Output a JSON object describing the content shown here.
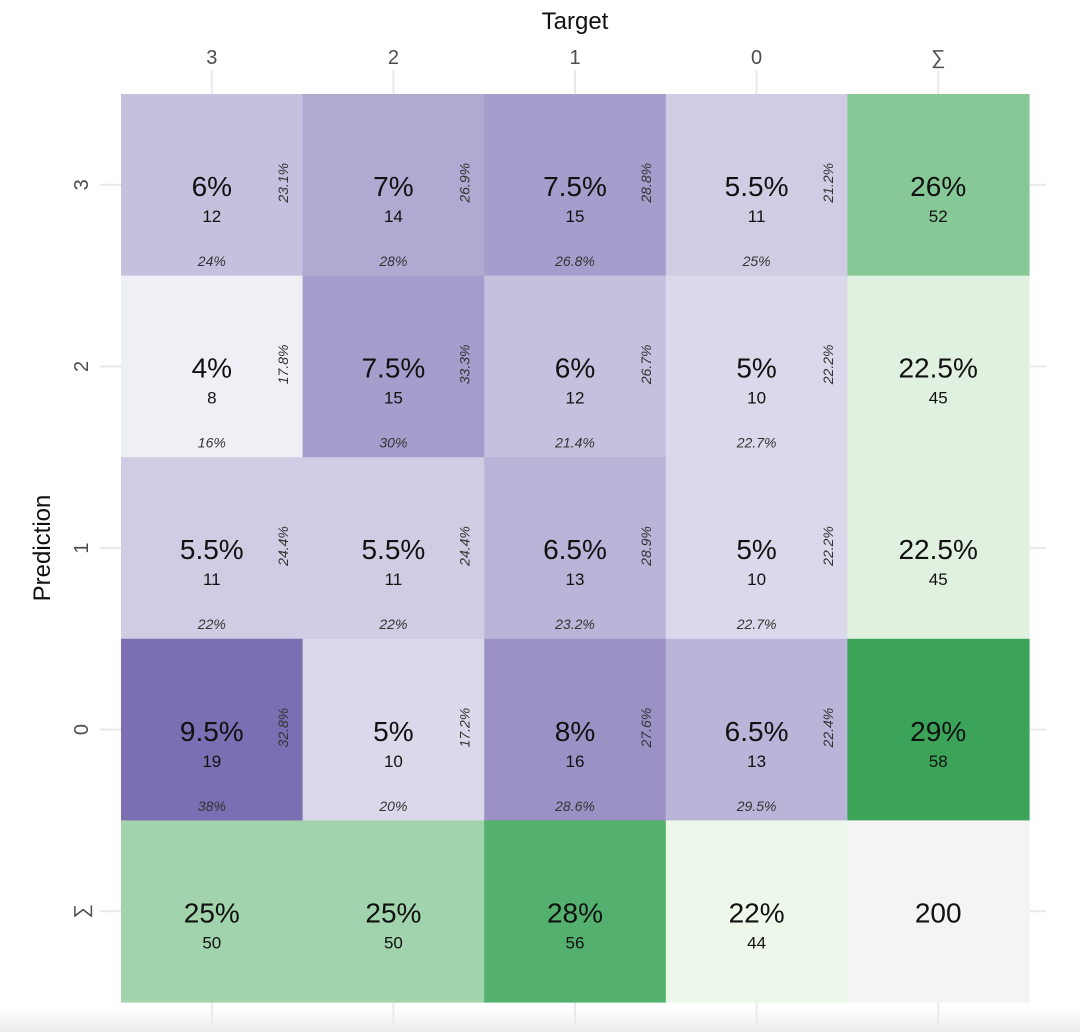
{
  "chart_data": {
    "type": "heatmap",
    "title": "",
    "xlabel": "Target",
    "ylabel": "Prediction",
    "columns": [
      "3",
      "2",
      "1",
      "0",
      "∑"
    ],
    "rows": [
      "3",
      "2",
      "1",
      "0",
      "∑"
    ],
    "cells": [
      [
        {
          "pct": "6%",
          "count": 12,
          "col_pct": "24%",
          "row_pct": "23.1%"
        },
        {
          "pct": "7%",
          "count": 14,
          "col_pct": "28%",
          "row_pct": "26.9%"
        },
        {
          "pct": "7.5%",
          "count": 15,
          "col_pct": "26.8%",
          "row_pct": "28.8%"
        },
        {
          "pct": "5.5%",
          "count": 11,
          "col_pct": "25%",
          "row_pct": "21.2%"
        }
      ],
      [
        {
          "pct": "4%",
          "count": 8,
          "col_pct": "16%",
          "row_pct": "17.8%"
        },
        {
          "pct": "7.5%",
          "count": 15,
          "col_pct": "30%",
          "row_pct": "33.3%"
        },
        {
          "pct": "6%",
          "count": 12,
          "col_pct": "21.4%",
          "row_pct": "26.7%"
        },
        {
          "pct": "5%",
          "count": 10,
          "col_pct": "22.7%",
          "row_pct": "22.2%"
        }
      ],
      [
        {
          "pct": "5.5%",
          "count": 11,
          "col_pct": "22%",
          "row_pct": "24.4%"
        },
        {
          "pct": "5.5%",
          "count": 11,
          "col_pct": "22%",
          "row_pct": "24.4%"
        },
        {
          "pct": "6.5%",
          "count": 13,
          "col_pct": "23.2%",
          "row_pct": "28.9%"
        },
        {
          "pct": "5%",
          "count": 10,
          "col_pct": "22.7%",
          "row_pct": "22.2%"
        }
      ],
      [
        {
          "pct": "9.5%",
          "count": 19,
          "col_pct": "38%",
          "row_pct": "32.8%"
        },
        {
          "pct": "5%",
          "count": 10,
          "col_pct": "20%",
          "row_pct": "17.2%"
        },
        {
          "pct": "8%",
          "count": 16,
          "col_pct": "28.6%",
          "row_pct": "27.6%"
        },
        {
          "pct": "6.5%",
          "count": 13,
          "col_pct": "29.5%",
          "row_pct": "22.4%"
        }
      ]
    ],
    "row_sums": [
      {
        "pct": "26%",
        "count": 52
      },
      {
        "pct": "22.5%",
        "count": 45
      },
      {
        "pct": "22.5%",
        "count": 45
      },
      {
        "pct": "29%",
        "count": 58
      }
    ],
    "col_sums": [
      {
        "pct": "25%",
        "count": 50
      },
      {
        "pct": "25%",
        "count": 50
      },
      {
        "pct": "28%",
        "count": 56
      },
      {
        "pct": "22%",
        "count": 44
      }
    ],
    "total": "200",
    "colors": {
      "purple_low": "#efeff6",
      "purple_high": "#7b6eb3",
      "green_low": "#edf7ea",
      "green_high": "#3ba459",
      "total_bg": "#f4f4f4",
      "grid": "#e9e9e9",
      "text": "#111111",
      "tick_text": "#4d4d4d",
      "italic_text": "#333333"
    }
  }
}
